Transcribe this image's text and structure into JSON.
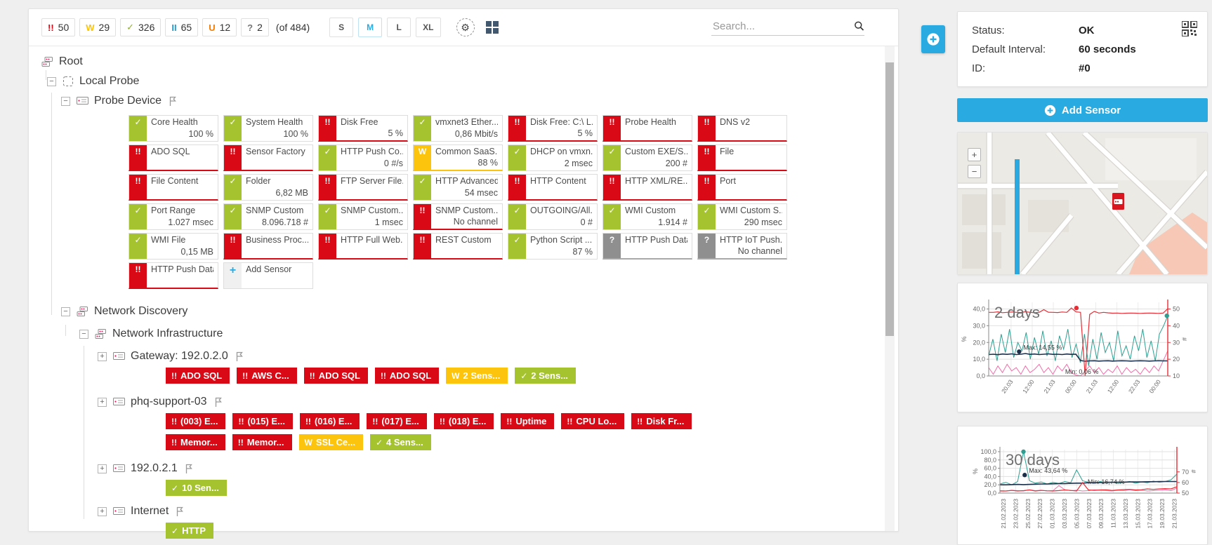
{
  "colors": {
    "red": "#d90916",
    "green": "#a5c32e",
    "yellow": "#fcc40c",
    "blue": "#29abe2",
    "teal": "#2f9e90",
    "navy": "#1c2f4a",
    "pink": "#ef6ea8",
    "chart_red": "#e62e36"
  },
  "toolbar": {
    "filters": [
      {
        "kind": "down",
        "count": "50"
      },
      {
        "kind": "warning",
        "count": "29"
      },
      {
        "kind": "up",
        "count": "326"
      },
      {
        "kind": "paused",
        "count": "65"
      },
      {
        "kind": "unusual",
        "count": "12"
      },
      {
        "kind": "unknown",
        "count": "2"
      }
    ],
    "total_label": "(of 484)",
    "sizes": [
      "S",
      "M",
      "L",
      "XL"
    ],
    "active_size": "M",
    "search_placeholder": "Search..."
  },
  "infobox": {
    "rows": [
      {
        "label": "Status:",
        "value": "OK"
      },
      {
        "label": "Default Interval:",
        "value": "60 seconds"
      },
      {
        "label": "ID:",
        "value": "#0"
      }
    ]
  },
  "sidebar": {
    "add_sensor_label": "Add Sensor"
  },
  "tree": {
    "nodes": [
      {
        "id": "root",
        "level": 0,
        "expander": null,
        "icon": "group",
        "label": "Root",
        "flag": false
      },
      {
        "id": "local-probe",
        "level": 1,
        "expander": "minus",
        "icon": "probe",
        "label": "Local Probe",
        "flag": false
      },
      {
        "id": "probe-device",
        "level": 2,
        "expander": "minus",
        "icon": "device",
        "label": "Probe Device",
        "flag": true,
        "tiles": "probe_device"
      },
      {
        "id": "network-discovery",
        "level": 2,
        "expander": "minus",
        "icon": "group",
        "label": "Network Discovery",
        "flag": false
      },
      {
        "id": "network-infrastructure",
        "level": 3,
        "expander": "minus",
        "icon": "group",
        "label": "Network Infrastructure",
        "flag": false
      },
      {
        "id": "gateway",
        "level": 4,
        "expander": "plus",
        "icon": "device",
        "label": "Gateway: 192.0.2.0",
        "flag": true,
        "chips": "gateway"
      },
      {
        "id": "phq-support-03",
        "level": 4,
        "expander": "plus",
        "icon": "device",
        "label": "phq-support-03",
        "flag": true,
        "chips": "phq"
      },
      {
        "id": "ip-192-0-2-1",
        "level": 4,
        "expander": "plus",
        "icon": "device",
        "label": "192.0.2.1",
        "flag": true,
        "chips": "ip1"
      },
      {
        "id": "internet",
        "level": 4,
        "expander": "plus",
        "icon": "device",
        "label": "Internet",
        "flag": true,
        "chips": "internet"
      }
    ]
  },
  "tiles": {
    "probe_device": [
      [
        {
          "s": "ok",
          "n": "Core Health",
          "v": "100 %"
        },
        {
          "s": "ok",
          "n": "System Health",
          "v": "100 %"
        },
        {
          "s": "err",
          "n": "Disk Free",
          "v": "5 %"
        },
        {
          "s": "ok",
          "n": "vmxnet3 Ether...",
          "v": "0,86 Mbit/s"
        },
        {
          "s": "err",
          "n": "Disk Free: C:\\ L...",
          "v": "5 %"
        },
        {
          "s": "err",
          "n": "Probe Health",
          "v": ""
        },
        {
          "s": "err",
          "n": "DNS v2",
          "v": ""
        }
      ],
      [
        {
          "s": "err",
          "n": "ADO SQL",
          "v": ""
        },
        {
          "s": "err",
          "n": "Sensor Factory",
          "v": ""
        },
        {
          "s": "ok",
          "n": "HTTP Push Co...",
          "v": "0 #/s"
        },
        {
          "s": "warn",
          "n": "Common SaaS...",
          "v": "88 %"
        },
        {
          "s": "ok",
          "n": "DHCP on vmxn...",
          "v": "2 msec"
        },
        {
          "s": "ok",
          "n": "Custom EXE/S...",
          "v": "200 #"
        },
        {
          "s": "err",
          "n": "File",
          "v": ""
        }
      ],
      [
        {
          "s": "err",
          "n": "File Content",
          "v": ""
        },
        {
          "s": "ok",
          "n": "Folder",
          "v": "6,82 MB"
        },
        {
          "s": "err",
          "n": "FTP Server File...",
          "v": ""
        },
        {
          "s": "ok",
          "n": "HTTP Advanced",
          "v": "54 msec"
        },
        {
          "s": "err",
          "n": "HTTP Content",
          "v": ""
        },
        {
          "s": "err",
          "n": "HTTP XML/RE...",
          "v": ""
        },
        {
          "s": "err",
          "n": "Port",
          "v": ""
        }
      ],
      [
        {
          "s": "ok",
          "n": "Port Range",
          "v": "1.027 msec"
        },
        {
          "s": "ok",
          "n": "SNMP Custom",
          "v": "8.096.718 #"
        },
        {
          "s": "ok",
          "n": "SNMP Custom...",
          "v": "1 msec"
        },
        {
          "s": "err",
          "n": "SNMP Custom...",
          "v": "No channel"
        },
        {
          "s": "ok",
          "n": "OUTGOING/All...",
          "v": "0 #"
        },
        {
          "s": "ok",
          "n": "WMI Custom",
          "v": "1.914 #"
        },
        {
          "s": "ok",
          "n": "WMI Custom S...",
          "v": "290 msec"
        }
      ],
      [
        {
          "s": "ok",
          "n": "WMI File",
          "v": "0,15 MB"
        },
        {
          "s": "err",
          "n": "Business Proc...",
          "v": ""
        },
        {
          "s": "err",
          "n": "HTTP Full Web...",
          "v": ""
        },
        {
          "s": "err",
          "n": "REST Custom",
          "v": ""
        },
        {
          "s": "ok",
          "n": "Python Script ...",
          "v": "87 %"
        },
        {
          "s": "unk",
          "n": "HTTP Push Data",
          "v": ""
        },
        {
          "s": "unk",
          "n": "HTTP IoT Push...",
          "v": "No channel"
        }
      ],
      [
        {
          "s": "err",
          "n": "HTTP Push Data",
          "v": ""
        },
        {
          "s": "add",
          "n": "Add Sensor",
          "v": ""
        }
      ]
    ]
  },
  "chips": {
    "gateway": [
      [
        {
          "s": "err",
          "l": "ADO SQL"
        },
        {
          "s": "err",
          "l": "AWS C..."
        },
        {
          "s": "err",
          "l": "ADO SQL"
        },
        {
          "s": "err",
          "l": "ADO SQL"
        },
        {
          "s": "warn",
          "l": "2 Sens..."
        },
        {
          "s": "ok",
          "l": "2 Sens..."
        }
      ]
    ],
    "phq": [
      [
        {
          "s": "err",
          "l": "(003) E..."
        },
        {
          "s": "err",
          "l": "(015) E..."
        },
        {
          "s": "err",
          "l": "(016) E..."
        },
        {
          "s": "err",
          "l": "(017) E..."
        },
        {
          "s": "err",
          "l": "(018) E..."
        },
        {
          "s": "err",
          "l": "Uptime"
        },
        {
          "s": "err",
          "l": "CPU Lo..."
        },
        {
          "s": "err",
          "l": "Disk Fr..."
        }
      ],
      [
        {
          "s": "err",
          "l": "Memor..."
        },
        {
          "s": "err",
          "l": "Memor..."
        },
        {
          "s": "warn",
          "l": "SSL Ce..."
        },
        {
          "s": "ok",
          "l": "4 Sens..."
        }
      ]
    ],
    "ip1": [
      [
        {
          "s": "ok",
          "l": "10 Sen..."
        }
      ]
    ],
    "internet": [
      [
        {
          "s": "ok",
          "l": "HTTP"
        }
      ]
    ]
  },
  "chart_data": [
    {
      "type": "line",
      "title": "2 days",
      "left_axis": {
        "label": "%",
        "lim": [
          0,
          44
        ],
        "ticks": [
          {
            "v": 40,
            "t": "40,0"
          },
          {
            "v": 30,
            "t": "30,0"
          },
          {
            "v": 20,
            "t": "20,0"
          },
          {
            "v": 10,
            "t": "10,0"
          },
          {
            "v": 0,
            "t": "0,0"
          }
        ]
      },
      "right_axis": {
        "label": "#",
        "lim": [
          10,
          54
        ],
        "ticks": [
          {
            "v": 50,
            "t": "50"
          },
          {
            "v": 40,
            "t": "40"
          },
          {
            "v": 30,
            "t": "30"
          },
          {
            "v": 20,
            "t": "20"
          },
          {
            "v": 10,
            "t": "10"
          }
        ]
      },
      "x_label_rotation": -55,
      "x_ticks": [
        {
          "f": 0.125,
          "t": "20.03"
        },
        {
          "f": 0.243,
          "t": "12:00"
        },
        {
          "f": 0.361,
          "t": "21.03"
        },
        {
          "f": 0.48,
          "t": "00:00"
        },
        {
          "f": 0.598,
          "t": "21.03"
        },
        {
          "f": 0.716,
          "t": "12:00"
        },
        {
          "f": 0.834,
          "t": "22.03"
        },
        {
          "f": 0.95,
          "t": "00:00"
        }
      ],
      "series": [
        {
          "name": "traffic",
          "axis": "left",
          "color": "teal",
          "width": 1,
          "values": [
            12,
            22,
            9,
            25,
            14,
            28,
            11,
            20,
            15,
            26,
            10,
            23,
            13,
            27,
            12,
            21,
            9,
            24,
            16,
            28,
            11,
            19,
            8,
            25,
            6,
            22,
            10,
            26,
            14,
            20,
            9,
            27,
            12,
            18,
            10,
            24,
            15,
            28,
            11,
            21,
            9,
            25,
            30,
            36
          ]
        },
        {
          "name": "load-low",
          "axis": "left",
          "color": "pink",
          "width": 1,
          "values": [
            5,
            1,
            6,
            2,
            7,
            3,
            5,
            1,
            6,
            2,
            4,
            7,
            2,
            5,
            1,
            6,
            3,
            7,
            2,
            0.5,
            0.1,
            3,
            6,
            2,
            5,
            1,
            4,
            2,
            6,
            1,
            5,
            2,
            4,
            1,
            5,
            2,
            6,
            3,
            9,
            15
          ]
        },
        {
          "name": "cpu",
          "axis": "left",
          "color": "navy",
          "width": 1.6,
          "values": [
            12.8,
            13,
            12.7,
            13.1,
            12.9,
            13.2,
            12.8,
            13,
            13.4,
            12.9,
            13.1,
            12.8,
            13,
            13.2,
            12.9,
            13,
            12.8,
            13.1,
            12.9,
            13,
            9.2,
            8.8,
            9,
            9.1,
            8.9,
            9,
            9.1,
            8.9,
            9,
            9.1,
            9,
            8.9,
            9,
            9.1,
            9,
            8.9,
            9,
            9.1,
            9,
            9
          ]
        },
        {
          "name": "count",
          "axis": "right",
          "color": "chart_red",
          "width": 1.2,
          "values": [
            48,
            48,
            48.3,
            47.8,
            48,
            48.2,
            48,
            47.9,
            48.4,
            48,
            47.8,
            48,
            49.6,
            48.1,
            48,
            47.9,
            48.2,
            48,
            50.6,
            48.3,
            48,
            10.2,
            46.8,
            48.6,
            47.6,
            48,
            47.7,
            47.5,
            47.6,
            47.4,
            47.5,
            47.6,
            47.5,
            47.4,
            47.5,
            47.6,
            47.5,
            47.4,
            47.6,
            50.2
          ]
        }
      ],
      "annotations": [
        {
          "f": 0.17,
          "v": 14.55,
          "axis": "left",
          "text": "Max: 14,55 %",
          "dot": true,
          "color": "navy",
          "anchor": "start"
        },
        {
          "f": 0.52,
          "v": 0.06,
          "axis": "left",
          "text": "Min: 0,06 %",
          "dot": false,
          "color": "pink",
          "anchor": "middle"
        },
        {
          "f": 0.49,
          "v": 50.6,
          "axis": "right",
          "text": "",
          "dot": true,
          "color": "chart_red"
        },
        {
          "f": 0.995,
          "v": 36,
          "axis": "left",
          "text": "",
          "dot": true,
          "color": "teal"
        }
      ]
    },
    {
      "type": "line",
      "title": "30 days",
      "left_axis": {
        "label": "%",
        "lim": [
          0,
          105
        ],
        "ticks": [
          {
            "v": 100,
            "t": "100,0"
          },
          {
            "v": 80,
            "t": "80,0"
          },
          {
            "v": 60,
            "t": "60,0"
          },
          {
            "v": 40,
            "t": "40,0"
          },
          {
            "v": 20,
            "t": "20,0"
          },
          {
            "v": 0,
            "t": "0,0"
          }
        ]
      },
      "right_axis": {
        "label": "#",
        "lim": [
          50,
          91
        ],
        "ticks": [
          {
            "v": 70,
            "t": "70"
          },
          {
            "v": 60,
            "t": "60"
          },
          {
            "v": 50,
            "t": "50"
          }
        ]
      },
      "x_label_rotation": -90,
      "x_ticks": [
        {
          "f": 0.02,
          "t": "21.02.2023"
        },
        {
          "f": 0.089,
          "t": "23.02.2023"
        },
        {
          "f": 0.158,
          "t": "25.02.2023"
        },
        {
          "f": 0.227,
          "t": "27.02.2023"
        },
        {
          "f": 0.296,
          "t": "01.03.2023"
        },
        {
          "f": 0.365,
          "t": "03.03.2023"
        },
        {
          "f": 0.434,
          "t": "05.03.2023"
        },
        {
          "f": 0.503,
          "t": "07.03.2023"
        },
        {
          "f": 0.572,
          "t": "09.03.2023"
        },
        {
          "f": 0.641,
          "t": "11.03.2023"
        },
        {
          "f": 0.71,
          "t": "13.03.2023"
        },
        {
          "f": 0.779,
          "t": "15.03.2023"
        },
        {
          "f": 0.848,
          "t": "17.03.2023"
        },
        {
          "f": 0.917,
          "t": "19.03.2023"
        },
        {
          "f": 0.986,
          "t": "21.03.2023"
        }
      ],
      "series": [
        {
          "name": "traffic",
          "axis": "left",
          "color": "teal",
          "width": 1,
          "values": [
            22,
            26,
            20,
            28,
            100,
            30,
            24,
            27,
            22,
            26,
            23,
            28,
            25,
            56,
            30,
            26,
            24,
            28,
            25,
            27,
            23,
            26,
            28,
            24,
            27,
            25,
            29,
            26,
            28,
            32,
            46
          ]
        },
        {
          "name": "load-low",
          "axis": "left",
          "color": "pink",
          "width": 1,
          "values": [
            6,
            5,
            7,
            6,
            5,
            8,
            6,
            7,
            5,
            6,
            18,
            8,
            6,
            7,
            5,
            6,
            8,
            7,
            6,
            5,
            7,
            6,
            8,
            6,
            7,
            5,
            6,
            7,
            8,
            6,
            12
          ]
        },
        {
          "name": "cpu",
          "axis": "left",
          "color": "navy",
          "width": 1.6,
          "values": [
            20,
            20,
            20.5,
            21,
            20.5,
            21,
            21.5,
            22,
            22,
            22.5,
            23,
            23,
            23.5,
            24,
            24,
            25,
            25,
            25.5,
            26,
            26,
            26.5,
            26.5,
            27,
            27,
            27,
            27.5,
            27.5,
            28,
            28,
            28,
            28
          ]
        },
        {
          "name": "count",
          "axis": "right",
          "color": "chart_red",
          "width": 1.2,
          "values": [
            52,
            52,
            52.5,
            52,
            52.3,
            53,
            52,
            52.5,
            52.2,
            52,
            52.4,
            53,
            52.5,
            52,
            60,
            53,
            52.6,
            53,
            53.2,
            52.5,
            53,
            53.3,
            53.5,
            53,
            53.2,
            54,
            53.5,
            54,
            54.2,
            54,
            56
          ]
        }
      ],
      "annotations": [
        {
          "f": 0.14,
          "v": 43.64,
          "axis": "left",
          "text": "Max: 43,64 %",
          "dot": true,
          "color": "navy",
          "anchor": "start"
        },
        {
          "f": 0.6,
          "v": 16.74,
          "axis": "left",
          "text": "Min: 16,74 %",
          "dot": false,
          "color": "pink",
          "anchor": "middle"
        },
        {
          "f": 0.133,
          "v": 100,
          "axis": "left",
          "text": "",
          "dot": true,
          "color": "teal"
        }
      ]
    }
  ]
}
